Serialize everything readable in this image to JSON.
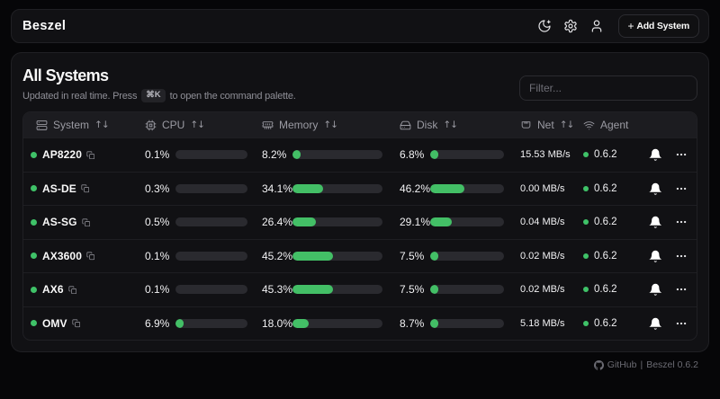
{
  "header": {
    "brand": "Beszel",
    "add_system_plus": "+",
    "add_system_label": "Add System"
  },
  "main": {
    "title": "All Systems",
    "subtitle_prefix": "Updated in real time. Press",
    "kbd": "⌘K",
    "subtitle_suffix": "to open the command palette.",
    "filter_placeholder": "Filter..."
  },
  "table": {
    "sort_indicator": "↑↓",
    "columns": [
      {
        "label": "System",
        "icon": "server-icon",
        "sortable": true
      },
      {
        "label": "CPU",
        "icon": "cpu-icon",
        "sortable": true
      },
      {
        "label": "Memory",
        "icon": "memory-icon",
        "sortable": true
      },
      {
        "label": "Disk",
        "icon": "harddrive-icon",
        "sortable": true
      },
      {
        "label": "Net",
        "icon": "ethernet-icon",
        "sortable": true
      },
      {
        "label": "Agent",
        "icon": "wifi-icon",
        "sortable": false
      }
    ],
    "rows": [
      {
        "name": "AP8220",
        "status": "up",
        "cpu": "0.1%",
        "cpu_pct": 0.1,
        "memory": "8.2%",
        "memory_pct": 8.2,
        "disk": "6.8%",
        "disk_pct": 6.8,
        "net": "15.53 MB/s",
        "agent": "0.6.2"
      },
      {
        "name": "AS-DE",
        "status": "up",
        "cpu": "0.3%",
        "cpu_pct": 0.3,
        "memory": "34.1%",
        "memory_pct": 34.1,
        "disk": "46.2%",
        "disk_pct": 46.2,
        "net": "0.00 MB/s",
        "agent": "0.6.2"
      },
      {
        "name": "AS-SG",
        "status": "up",
        "cpu": "0.5%",
        "cpu_pct": 0.5,
        "memory": "26.4%",
        "memory_pct": 26.4,
        "disk": "29.1%",
        "disk_pct": 29.1,
        "net": "0.04 MB/s",
        "agent": "0.6.2"
      },
      {
        "name": "AX3600",
        "status": "up",
        "cpu": "0.1%",
        "cpu_pct": 0.1,
        "memory": "45.2%",
        "memory_pct": 45.2,
        "disk": "7.5%",
        "disk_pct": 7.5,
        "net": "0.02 MB/s",
        "agent": "0.6.2"
      },
      {
        "name": "AX6",
        "status": "up",
        "cpu": "0.1%",
        "cpu_pct": 0.1,
        "memory": "45.3%",
        "memory_pct": 45.3,
        "disk": "7.5%",
        "disk_pct": 7.5,
        "net": "0.02 MB/s",
        "agent": "0.6.2"
      },
      {
        "name": "OMV",
        "status": "up",
        "cpu": "6.9%",
        "cpu_pct": 6.9,
        "memory": "18.0%",
        "memory_pct": 18.0,
        "disk": "8.7%",
        "disk_pct": 8.7,
        "net": "5.18 MB/s",
        "agent": "0.6.2"
      }
    ]
  },
  "footer": {
    "github_label": "GitHub",
    "separator": "|",
    "version_label": "Beszel 0.6.2"
  },
  "colors": {
    "accent_green": "#43bf66",
    "status_green": "#3fc268",
    "bar_track": "#2a2a2f"
  }
}
